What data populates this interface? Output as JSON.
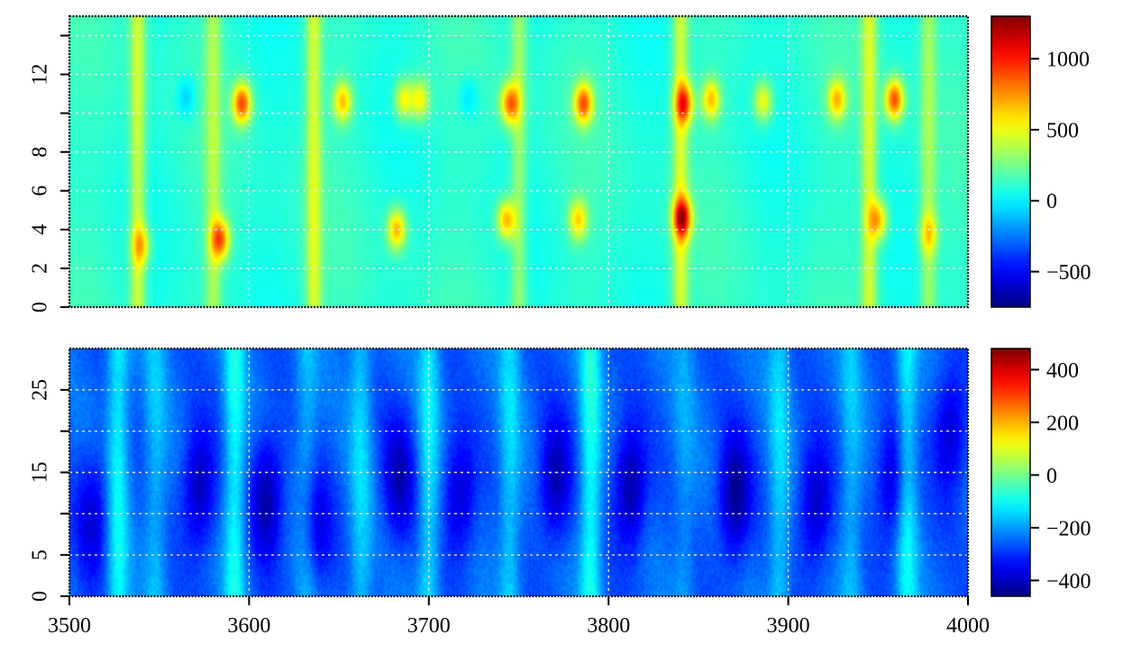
{
  "chart_data": [
    {
      "type": "heatmap",
      "title": "",
      "xlabel": "",
      "ylabel": "",
      "xlim": [
        3500,
        4000
      ],
      "ylim": [
        0,
        15
      ],
      "y_ticks": [
        0,
        2,
        4,
        6,
        8,
        12
      ],
      "y_tick_labels": [
        "0",
        "2",
        "4",
        "6",
        "8",
        "12"
      ],
      "y_minor_ticks": [
        10,
        14
      ],
      "y_grid": [
        2,
        4,
        6,
        8,
        10,
        12,
        14
      ],
      "x_grid": [
        3600,
        3700,
        3800,
        3900
      ],
      "x_tick_labels_shown": false,
      "grid": true,
      "colormap": "jet",
      "colorbar": {
        "range": [
          -750,
          1300
        ],
        "ticks": [
          -500,
          0,
          500,
          1000
        ],
        "tick_labels": [
          "−500",
          "0",
          "500",
          "1000"
        ]
      },
      "background_value": 100,
      "features": [
        {
          "x": 3540,
          "y": 3.2,
          "value": 500
        },
        {
          "x": 3565,
          "y": 10.8,
          "value": -100
        },
        {
          "x": 3584,
          "y": 3.5,
          "value": 800
        },
        {
          "x": 3596,
          "y": 10.5,
          "value": 900
        },
        {
          "x": 3652,
          "y": 10.6,
          "value": 650
        },
        {
          "x": 3682,
          "y": 4.0,
          "value": 700
        },
        {
          "x": 3686,
          "y": 10.7,
          "value": 550
        },
        {
          "x": 3695,
          "y": 10.7,
          "value": 550
        },
        {
          "x": 3722,
          "y": 10.8,
          "value": -60
        },
        {
          "x": 3743,
          "y": 4.5,
          "value": 700
        },
        {
          "x": 3745,
          "y": 10.5,
          "value": 800
        },
        {
          "x": 3783,
          "y": 4.5,
          "value": 600
        },
        {
          "x": 3786,
          "y": 10.5,
          "value": 850
        },
        {
          "x": 3841,
          "y": 4.6,
          "value": 950
        },
        {
          "x": 3842,
          "y": 10.5,
          "value": 800
        },
        {
          "x": 3857,
          "y": 10.7,
          "value": 650
        },
        {
          "x": 3886,
          "y": 10.6,
          "value": 550
        },
        {
          "x": 3927,
          "y": 10.7,
          "value": 650
        },
        {
          "x": 3950,
          "y": 4.5,
          "value": 650
        },
        {
          "x": 3959,
          "y": 10.7,
          "value": 900
        },
        {
          "x": 3978,
          "y": 3.8,
          "value": 450
        }
      ],
      "vertical_bands": [
        {
          "x": 3538,
          "value": 450
        },
        {
          "x": 3580,
          "value": 350
        },
        {
          "x": 3636,
          "value": 450
        },
        {
          "x": 3750,
          "value": 350
        },
        {
          "x": 3840,
          "value": 450
        },
        {
          "x": 3945,
          "value": 450
        },
        {
          "x": 3978,
          "value": 350
        }
      ]
    },
    {
      "type": "heatmap",
      "title": "",
      "xlabel": "",
      "ylabel": "",
      "xlim": [
        3500,
        4000
      ],
      "ylim": [
        0,
        30
      ],
      "y_ticks": [
        0,
        5,
        15,
        25
      ],
      "y_tick_labels": [
        "0",
        "5",
        "15",
        "25"
      ],
      "y_minor_ticks": [
        10,
        20
      ],
      "y_grid": [
        5,
        10,
        15,
        20,
        25
      ],
      "x_grid": [
        3600,
        3700,
        3800,
        3900
      ],
      "x_ticks": [
        3500,
        3600,
        3700,
        3800,
        3900,
        4000
      ],
      "x_tick_labels": [
        "3500",
        "3600",
        "3700",
        "3800",
        "3900",
        "4000"
      ],
      "grid": true,
      "colormap": "jet",
      "colorbar": {
        "range": [
          -460,
          480
        ],
        "ticks": [
          -400,
          -200,
          0,
          200,
          400
        ],
        "tick_labels": [
          "−400",
          "−200",
          "0",
          "200",
          "400"
        ]
      },
      "background_value": -250,
      "bright_bands": [
        {
          "x": 3527,
          "value": -110
        },
        {
          "x": 3548,
          "value": -170
        },
        {
          "x": 3592,
          "value": -100
        },
        {
          "x": 3632,
          "value": -170
        },
        {
          "x": 3662,
          "value": -150
        },
        {
          "x": 3700,
          "value": -130
        },
        {
          "x": 3745,
          "value": -150
        },
        {
          "x": 3790,
          "value": -90
        },
        {
          "x": 3842,
          "value": -200
        },
        {
          "x": 3895,
          "value": -150
        },
        {
          "x": 3935,
          "value": -170
        },
        {
          "x": 3966,
          "value": -110
        }
      ],
      "dark_spots": [
        {
          "x": 3513,
          "y": 10,
          "value": -380
        },
        {
          "x": 3572,
          "y": 13,
          "value": -420
        },
        {
          "x": 3610,
          "y": 12,
          "value": -430
        },
        {
          "x": 3637,
          "y": 8,
          "value": -380
        },
        {
          "x": 3683,
          "y": 14,
          "value": -400
        },
        {
          "x": 3717,
          "y": 12,
          "value": -400
        },
        {
          "x": 3770,
          "y": 14,
          "value": -420
        },
        {
          "x": 3812,
          "y": 13,
          "value": -440
        },
        {
          "x": 3870,
          "y": 12,
          "value": -450
        },
        {
          "x": 3915,
          "y": 11,
          "value": -410
        },
        {
          "x": 3958,
          "y": 14,
          "value": -400
        },
        {
          "x": 3990,
          "y": 20,
          "value": -400
        }
      ]
    }
  ]
}
